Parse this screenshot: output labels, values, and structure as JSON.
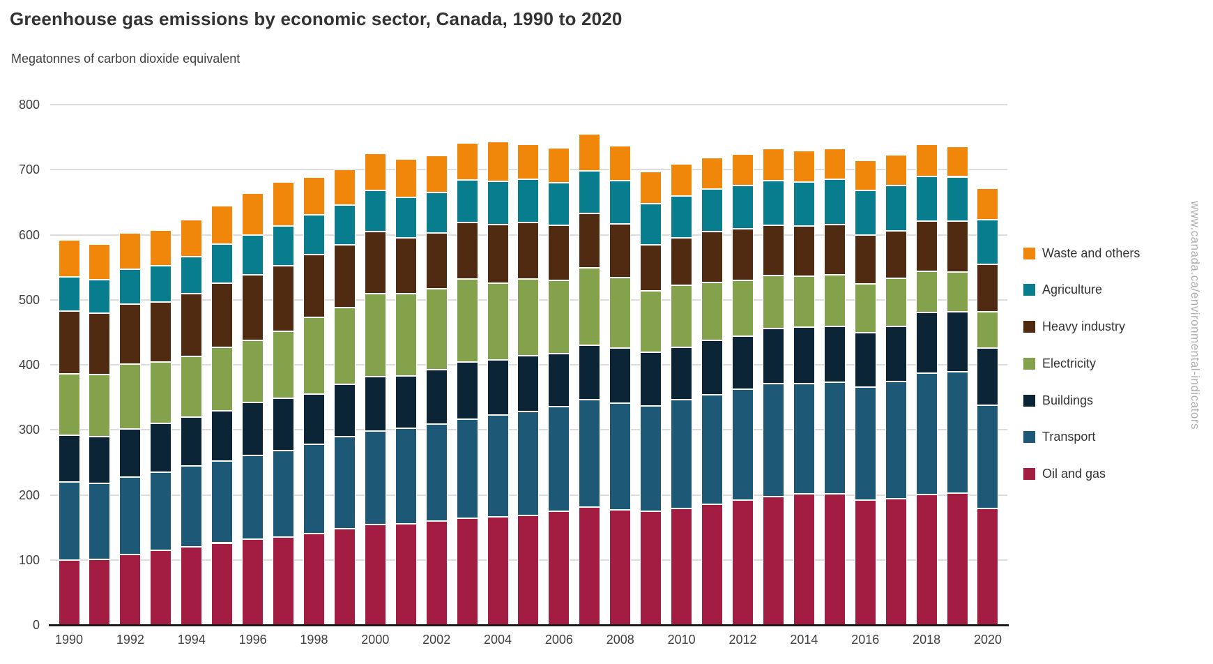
{
  "title": "Greenhouse gas emissions by economic sector, Canada, 1990 to 2020",
  "units_label": "Megatonnes of carbon dioxide equivalent",
  "watermark": "www.canada.ca/environmental-indicators",
  "axes": {
    "y_tick_labels": [
      "0",
      "100",
      "200",
      "300",
      "400",
      "500",
      "600",
      "700",
      "800"
    ],
    "x_tick_labels": [
      "1990",
      "1992",
      "1994",
      "1996",
      "1998",
      "2000",
      "2002",
      "2004",
      "2006",
      "2008",
      "2010",
      "2012",
      "2014",
      "2016",
      "2018",
      "2020"
    ]
  },
  "chart_data": {
    "type": "bar",
    "stacked": true,
    "title": "Greenhouse gas emissions by economic sector, Canada, 1990 to 2020",
    "ylabel": "Megatonnes of carbon dioxide equivalent",
    "xlabel": "",
    "ylim": [
      0,
      800
    ],
    "ytick_interval": 100,
    "grid": true,
    "legend_position": "right",
    "x": [
      1990,
      1991,
      1992,
      1993,
      1994,
      1995,
      1996,
      1997,
      1998,
      1999,
      2000,
      2001,
      2002,
      2003,
      2004,
      2005,
      2006,
      2007,
      2008,
      2009,
      2010,
      2011,
      2012,
      2013,
      2014,
      2015,
      2016,
      2017,
      2018,
      2019,
      2020
    ],
    "series": [
      {
        "name": "Oil and gas",
        "color": "#a31d42",
        "values": [
          100,
          101,
          108,
          115,
          120,
          126,
          132,
          135,
          140,
          148,
          154,
          156,
          160,
          164,
          166,
          168,
          175,
          181,
          177,
          175,
          179,
          186,
          192,
          197,
          202,
          202,
          192,
          194,
          201,
          203,
          179
        ]
      },
      {
        "name": "Transport",
        "color": "#1d5877",
        "values": [
          120,
          117,
          119,
          120,
          124,
          126,
          129,
          133,
          138,
          142,
          144,
          146,
          149,
          152,
          157,
          160,
          161,
          165,
          164,
          162,
          167,
          168,
          170,
          174,
          169,
          171,
          174,
          180,
          186,
          186,
          159
        ]
      },
      {
        "name": "Buildings",
        "color": "#0c2536",
        "values": [
          72,
          72,
          74,
          75,
          76,
          77,
          81,
          80,
          77,
          80,
          84,
          81,
          83,
          88,
          85,
          86,
          81,
          84,
          85,
          82,
          81,
          83,
          82,
          85,
          87,
          86,
          83,
          85,
          93,
          92,
          88
        ]
      },
      {
        "name": "Electricity",
        "color": "#84a24b",
        "values": [
          94,
          95,
          100,
          94,
          93,
          98,
          96,
          104,
          118,
          118,
          127,
          126,
          125,
          128,
          118,
          118,
          113,
          119,
          108,
          95,
          95,
          90,
          86,
          81,
          78,
          79,
          75,
          74,
          64,
          62,
          56
        ]
      },
      {
        "name": "Heavy industry",
        "color": "#502b12",
        "values": [
          97,
          94,
          92,
          93,
          96,
          99,
          100,
          100,
          96,
          96,
          96,
          86,
          86,
          87,
          90,
          87,
          85,
          84,
          83,
          70,
          73,
          78,
          79,
          77,
          77,
          78,
          75,
          73,
          77,
          78,
          72
        ]
      },
      {
        "name": "Agriculture",
        "color": "#077d8d",
        "values": [
          52,
          52,
          54,
          55,
          57,
          59,
          61,
          61,
          62,
          62,
          63,
          62,
          62,
          65,
          66,
          66,
          65,
          65,
          66,
          64,
          64,
          65,
          67,
          69,
          68,
          69,
          69,
          70,
          69,
          68,
          69
        ]
      },
      {
        "name": "Waste and others",
        "color": "#f0870b",
        "values": [
          57,
          55,
          56,
          55,
          57,
          59,
          65,
          68,
          57,
          54,
          57,
          59,
          57,
          57,
          61,
          54,
          53,
          57,
          54,
          49,
          50,
          49,
          48,
          49,
          48,
          47,
          46,
          47,
          49,
          47,
          48
        ]
      }
    ],
    "legend_order_top_to_bottom": [
      "Waste and others",
      "Agriculture",
      "Heavy industry",
      "Electricity",
      "Buildings",
      "Transport",
      "Oil and gas"
    ]
  }
}
